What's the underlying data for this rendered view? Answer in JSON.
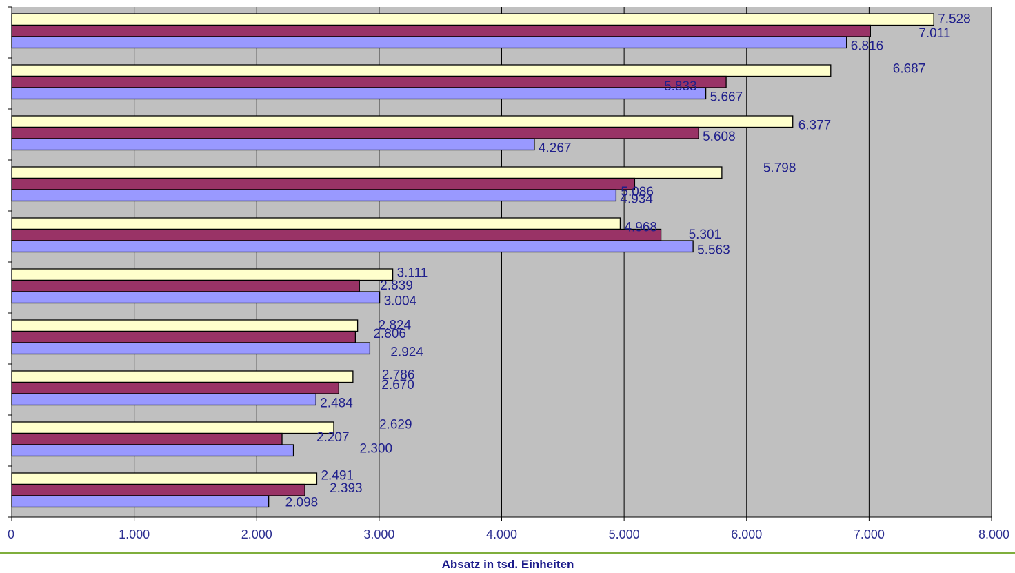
{
  "chart_data": {
    "type": "bar",
    "orientation": "horizontal",
    "xlabel": "Absatz in tsd. Einheiten",
    "xlim": [
      0,
      8000
    ],
    "x_ticks": [
      {
        "value": 0,
        "label": "0"
      },
      {
        "value": 1000,
        "label": "1.000"
      },
      {
        "value": 2000,
        "label": "2.000"
      },
      {
        "value": 3000,
        "label": "3.000"
      },
      {
        "value": 4000,
        "label": "4.000"
      },
      {
        "value": 5000,
        "label": "5.000"
      },
      {
        "value": 6000,
        "label": "6.000"
      },
      {
        "value": 7000,
        "label": "7.000"
      },
      {
        "value": 8000,
        "label": "8.000"
      }
    ],
    "grid": "vertical",
    "legend": "none",
    "background": "#c0c0c0",
    "series": [
      {
        "color": "#ffffcc",
        "values": [
          7528,
          6687,
          6377,
          5798,
          4968,
          3111,
          2824,
          2786,
          2629,
          2491
        ],
        "labels": [
          "7.528",
          "6.687",
          "6.377",
          "5.798",
          "4.968",
          "3.111",
          "2.824",
          "2.786",
          "2.629",
          "2.491"
        ]
      },
      {
        "color": "#993366",
        "values": [
          7011,
          5833,
          5608,
          5086,
          5301,
          2839,
          2806,
          2670,
          2207,
          2393
        ],
        "labels": [
          "7.011",
          "5.833",
          "5.608",
          "5.086",
          "5.301",
          "2.839",
          "2.806",
          "2.670",
          "2.207",
          "2.393"
        ]
      },
      {
        "color": "#9999ff",
        "values": [
          6816,
          5667,
          4267,
          4934,
          5563,
          3004,
          2924,
          2484,
          2300,
          2098
        ],
        "labels": [
          "6.816",
          "5.667",
          "4.267",
          "4.934",
          "5.563",
          "3.004",
          "2.924",
          "2.484",
          "2.300",
          "2.098"
        ]
      }
    ]
  }
}
